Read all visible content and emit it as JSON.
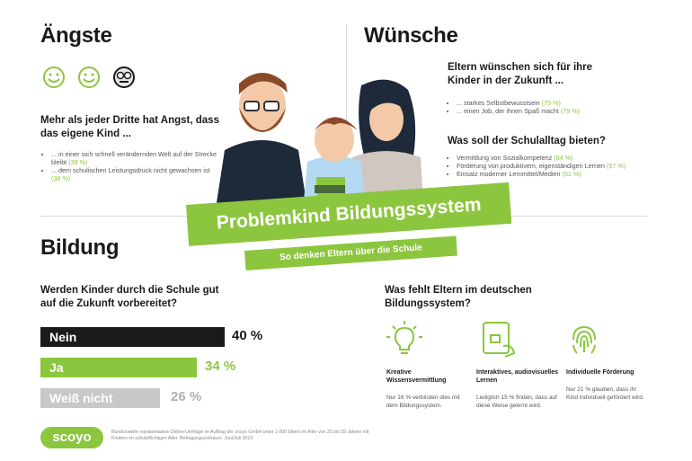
{
  "angste": {
    "title": "Ängste",
    "question": "Mehr als jeder Dritte hat Angst, dass das eigene Kind ...",
    "items": [
      {
        "text": "... in einer sich schnell verändernden Welt auf der Strecke bleibt",
        "value": "(39 %)"
      },
      {
        "text": "... dem schulischen Leistungsdruck nicht gewachsen ist",
        "value": "(38 %)"
      }
    ]
  },
  "wunsche": {
    "title": "Wünsche",
    "question": "Eltern wünschen sich für ihre Kinder in der Zukunft ...",
    "items": [
      {
        "text": "... starkes Selbstbewusstsein",
        "value": "(79 %)"
      },
      {
        "text": "... einen Job, der ihnen Spaß macht",
        "value": "(79 %)"
      }
    ],
    "question2": "Was soll der Schulalltag bieten?",
    "items2": [
      {
        "text": "Vermittlung von Sozialkompetenz",
        "value": "(64 %)"
      },
      {
        "text": "Förderung von produktivem, eigenständigen Lernen",
        "value": "(57 %)"
      },
      {
        "text": "Einsatz moderner Lernmittel/Medien",
        "value": "(51 %)"
      }
    ]
  },
  "banner": {
    "title": "Problemkind Bildungssystem",
    "subtitle": "So denken Eltern über die Schule"
  },
  "bildung": {
    "title": "Bildung",
    "question": "Werden Kinder durch die Schule gut auf die Zukunft vorbereitet?",
    "bars": [
      {
        "label": "Nein",
        "pct": "40 %",
        "value": 40,
        "color": "#1a1a1a"
      },
      {
        "label": "Ja",
        "pct": "34 %",
        "value": 34,
        "color": "#8cc63f"
      },
      {
        "label": "Weiß nicht",
        "pct": "26 %",
        "value": 26,
        "color": "#c8c8c8"
      }
    ]
  },
  "fehlt": {
    "question": "Was fehlt Eltern im deutschen Bildungssystem?",
    "columns": [
      {
        "icon": "lightbulb-icon",
        "head": "Kreative Wissensvermittlung",
        "text": "Nur 16 % verbinden dies mit dem Bildungssystem."
      },
      {
        "icon": "tablet-hand-icon",
        "head": "Interaktives, audiovisuelles Lernen",
        "text": "Lediglich 15 % finden, dass auf diese Weise gelernt wird."
      },
      {
        "icon": "fingerprint-icon",
        "head": "Individuelle Förderung",
        "text": "Nur 21 % glauben, dass ihr Kind individuell gefördert wird."
      }
    ]
  },
  "footer": {
    "logo": "scoyo",
    "note": "Bundesweite repräsentative Online-Umfrage im Auftrag der scoyo GmbH unter 1.000 Eltern im Alter von 25 bis 59 Jahren mit Kindern im schulpflichtigen Alter. Befragungszeitraum: Juni/Juli 2019"
  },
  "colors": {
    "accent": "#8cc63f",
    "dark": "#1a1a1a",
    "grey": "#c8c8c8"
  }
}
